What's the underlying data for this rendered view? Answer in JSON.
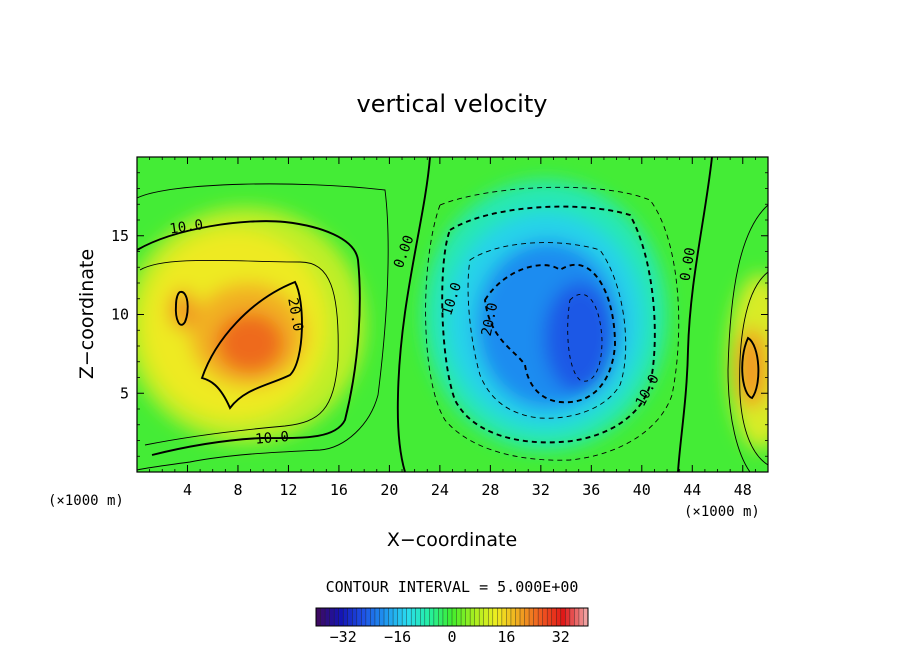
{
  "chart_data": {
    "type": "contour",
    "title": "vertical velocity",
    "xlabel": "X−coordinate",
    "ylabel": "Z−coordinate",
    "x_unit_left": "(×1000 m)",
    "x_unit_right": "(×1000 m)",
    "xlim": [
      0,
      50
    ],
    "ylim": [
      0,
      20
    ],
    "x_ticks": [
      "4",
      "8",
      "12",
      "16",
      "20",
      "24",
      "28",
      "32",
      "36",
      "40",
      "44",
      "48"
    ],
    "x_tick_values": [
      4,
      8,
      12,
      16,
      20,
      24,
      28,
      32,
      36,
      40,
      44,
      48
    ],
    "y_ticks": [
      "5",
      "10",
      "15"
    ],
    "y_tick_values": [
      5,
      10,
      15
    ],
    "contour_interval_text": "CONTOUR INTERVAL = 5.000E+00",
    "contour_interval": 5.0,
    "contour_labels": [
      {
        "text": "10.0",
        "x": 3.9,
        "y": 15.6
      },
      {
        "text": "20.0",
        "x": 12.6,
        "y": 10.0
      },
      {
        "text": "10.0",
        "x": 10.7,
        "y": 2.2
      },
      {
        "text": "0.00",
        "x": 21.1,
        "y": 14.0
      },
      {
        "text": "10.0",
        "x": 24.9,
        "y": 11.0
      },
      {
        "text": "20.0",
        "x": 27.9,
        "y": 9.7
      },
      {
        "text": "10.0",
        "x": 40.4,
        "y": 5.2
      },
      {
        "text": "0.00",
        "x": 43.6,
        "y": 13.2
      }
    ],
    "features": [
      {
        "sign": "positive",
        "x": 8.7,
        "y": 8.8,
        "peak": 30
      },
      {
        "sign": "positive",
        "x": 3.7,
        "y": 10.3,
        "peak": 26
      },
      {
        "sign": "negative",
        "x": 34.8,
        "y": 9.2,
        "peak": -24
      },
      {
        "sign": "negative",
        "x": 28.2,
        "y": 10.5,
        "peak": -16
      },
      {
        "sign": "positive",
        "x": 48.7,
        "y": 6.9,
        "peak": 30
      }
    ],
    "colorbar": {
      "ticks": [
        "−32",
        "−16",
        "0",
        "16",
        "32"
      ],
      "tick_values": [
        -32,
        -16,
        0,
        16,
        32
      ],
      "range": [
        -40,
        40
      ],
      "colors": [
        "#3d0a63",
        "#1414b4",
        "#1e50e6",
        "#1e96f0",
        "#2adcf0",
        "#24f0a0",
        "#40ee2c",
        "#a8ee20",
        "#f0ee20",
        "#f0a820",
        "#f05820",
        "#e01818",
        "#f0a0a0"
      ]
    }
  }
}
